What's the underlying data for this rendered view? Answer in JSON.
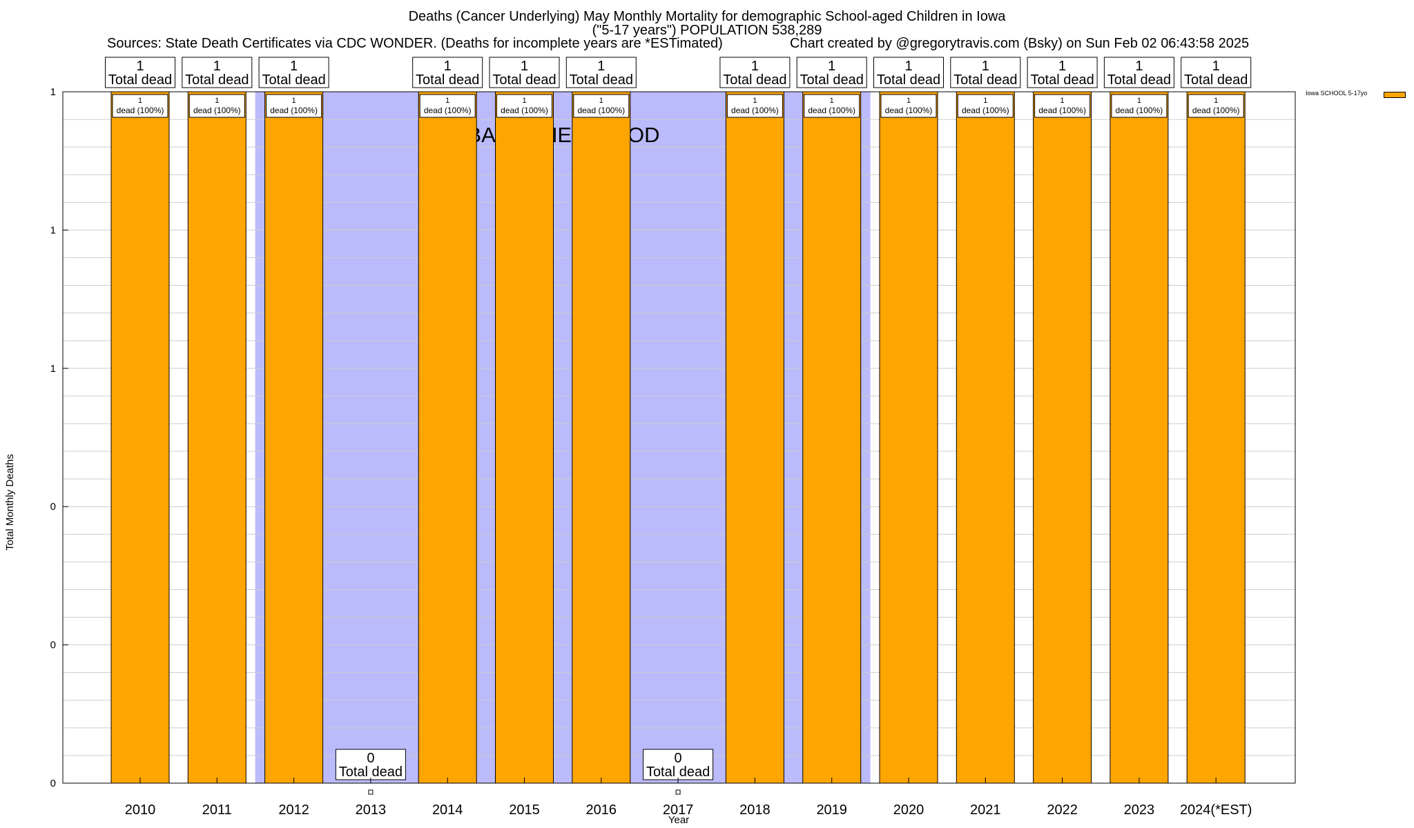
{
  "chart_title": {
    "line1": "Deaths (Cancer Underlying) May Monthly Mortality for demographic School-aged Children in Iowa",
    "line2": "(\"5-17 years\") POPULATION 538,289",
    "sources": "Sources: State Death Certificates via CDC WONDER. (Deaths for incomplete years are *ESTimated)",
    "credit": "Chart created by @gregorytravis.com (Bsky) on Sun Feb 02 06:43:58 2025"
  },
  "colors": {
    "bar": "#ffa500",
    "baseline_band": "#bbbbfb",
    "grid": "#cccccc"
  },
  "chart_data": {
    "type": "bar",
    "title": "Deaths (Cancer Underlying) May Monthly Mortality for demographic School-aged Children in Iowa",
    "xlabel": "Year",
    "ylabel": "Total Monthly Deaths",
    "ylim": [
      0,
      1
    ],
    "y_tick_labels": [
      "0",
      "0",
      "0",
      "1",
      "1",
      "1"
    ],
    "grid": true,
    "legend_position": "top-right",
    "categories": [
      "2010",
      "2011",
      "2012",
      "2013",
      "2014",
      "2015",
      "2016",
      "2017",
      "2018",
      "2019",
      "2020",
      "2021",
      "2022",
      "2023",
      "2024(*EST)"
    ],
    "series": [
      {
        "name": "Iowa SCHOOL 5-17yo",
        "values": [
          1,
          1,
          1,
          0,
          1,
          1,
          1,
          0,
          1,
          1,
          1,
          1,
          1,
          1,
          1
        ]
      }
    ],
    "total_labels": [
      "1\nTotal dead",
      "1\nTotal dead",
      "1\nTotal dead",
      "0\nTotal dead",
      "1\nTotal dead",
      "1\nTotal dead",
      "1\nTotal dead",
      "0\nTotal dead",
      "1\nTotal dead",
      "1\nTotal dead",
      "1\nTotal dead",
      "1\nTotal dead",
      "1\nTotal dead",
      "1\nTotal dead",
      "1\nTotal dead"
    ],
    "bar_labels": [
      "1\ndead (100%)",
      "1\ndead (100%)",
      "1\ndead (100%)",
      "",
      "1\ndead (100%)",
      "1\ndead (100%)",
      "1\ndead (100%)",
      "",
      "1\ndead (100%)",
      "1\ndead (100%)",
      "1\ndead (100%)",
      "1\ndead (100%)",
      "1\ndead (100%)",
      "1\ndead (100%)",
      "1\ndead (100%)"
    ],
    "annotations": [
      {
        "text": "BASELINE PERIOD",
        "from": "2012",
        "to": "2019"
      }
    ]
  }
}
